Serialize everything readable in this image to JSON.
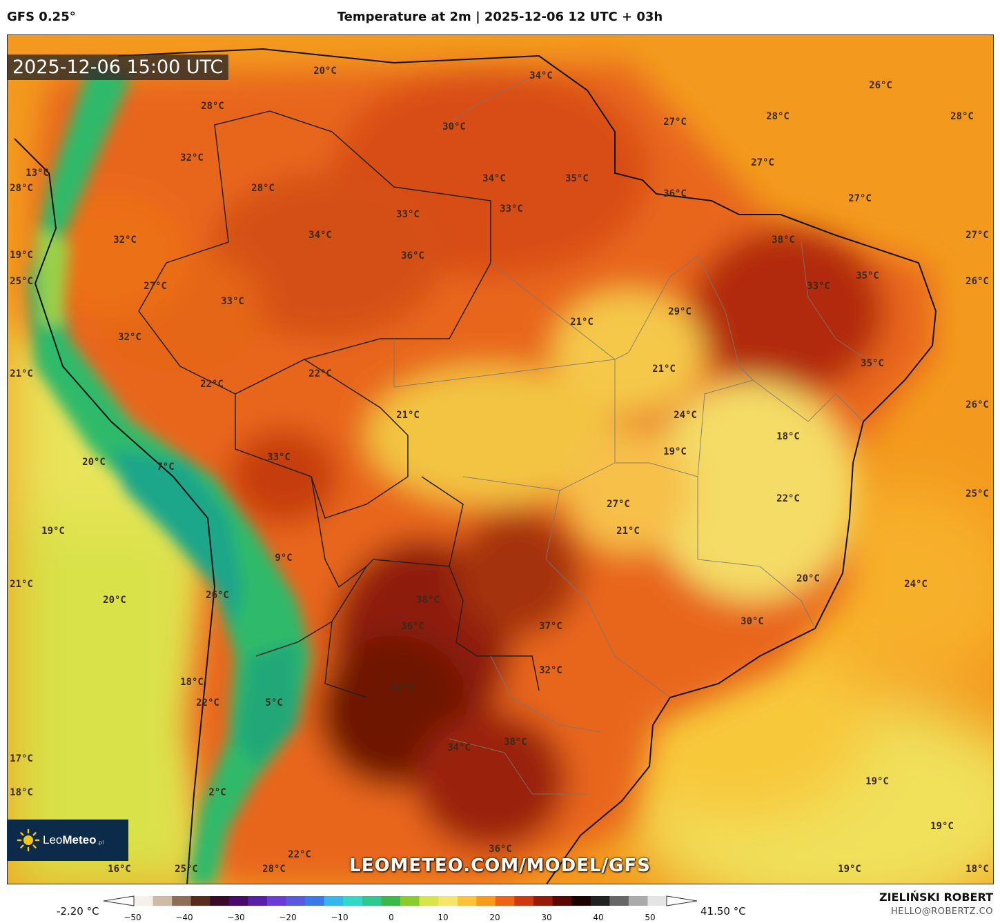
{
  "header": {
    "model": "GFS 0.25°",
    "title": "Temperature at 2m | 2025-12-06 12 UTC + 03h"
  },
  "timestamp": "2025-12-06 15:00 UTC",
  "watermark": "LEOMETEO.COM/MODEL/GFS",
  "logo": {
    "name": "LeoMeteo",
    "prefix": "Leo",
    "suffix": "Meteo",
    "tld": ".pl"
  },
  "legend": {
    "min_label": "-2.20 °C",
    "max_label": "41.50 °C",
    "ticks": [
      "−50",
      "−40",
      "−30",
      "−20",
      "−10",
      "0",
      "10",
      "20",
      "30",
      "40",
      "50"
    ],
    "colors": [
      "#f4f1ea",
      "#cdbba8",
      "#8e6e57",
      "#5a2a1a",
      "#3b0a2a",
      "#4a0a6a",
      "#5a1fa8",
      "#6a3cd8",
      "#5a5ae0",
      "#3a7ae8",
      "#35b6ee",
      "#30d8c8",
      "#2ec890",
      "#3ab84a",
      "#8acc2e",
      "#d6e64a",
      "#f5e66a",
      "#fbc23a",
      "#f89a1a",
      "#ee6414",
      "#d0380e",
      "#9a1a08",
      "#5a0804",
      "#1e0202",
      "#222222",
      "#666666",
      "#aaaaaa",
      "#e4e4e4"
    ]
  },
  "author": {
    "name": "ZIELIŃSKI ROBERT",
    "email": "HELLO@ROBERTZ.CO"
  },
  "temperature_labels": [
    "20°C",
    "34°C",
    "28°C",
    "30°C",
    "26°C",
    "27°C",
    "28°C",
    "28°C",
    "32°C",
    "34°C",
    "35°C",
    "27°C",
    "13°C",
    "28°C",
    "28°C",
    "33°C",
    "33°C",
    "36°C",
    "27°C",
    "32°C",
    "34°C",
    "38°C",
    "27°C",
    "19°C",
    "36°C",
    "35°C",
    "25°C",
    "27°C",
    "33°C",
    "21°C",
    "33°C",
    "26°C",
    "32°C",
    "29°C",
    "21°C",
    "22°C",
    "22°C",
    "35°C",
    "21°C",
    "21°C",
    "24°C",
    "26°C",
    "33°C",
    "18°C",
    "7°C",
    "19°C",
    "20°C",
    "27°C",
    "22°C",
    "19°C",
    "21°C",
    "25°C",
    "9°C",
    "20°C",
    "21°C",
    "24°C",
    "20°C",
    "26°C",
    "38°C",
    "37°C",
    "36°C",
    "30°C",
    "32°C",
    "41°C",
    "18°C",
    "22°C",
    "5°C",
    "34°C",
    "38°C",
    "17°C",
    "19°C",
    "18°C",
    "2°C",
    "19°C",
    "36°C",
    "22°C",
    "16°C",
    "25°C",
    "28°C",
    "19°C",
    "18°C"
  ]
}
